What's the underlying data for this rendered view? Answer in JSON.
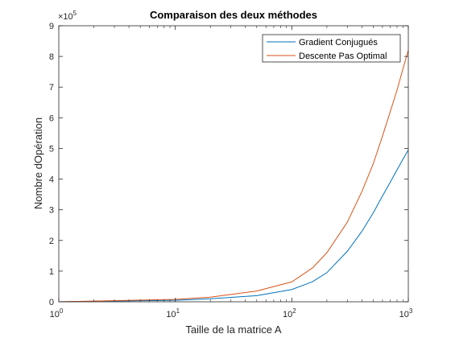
{
  "chart_data": {
    "type": "line",
    "title": "Comparaison des deux méthodes",
    "xlabel": "Taille de la matrice A",
    "ylabel": "Nombre dOpération",
    "xscale": "log",
    "xlim": [
      1,
      1000
    ],
    "ylim": [
      0,
      900000
    ],
    "y_multiplier_label": "×10",
    "y_multiplier_exponent": "5",
    "x_tick_base": "10",
    "x_ticks": [
      {
        "value": 1,
        "exponent": "0"
      },
      {
        "value": 10,
        "exponent": "1"
      },
      {
        "value": 100,
        "exponent": "2"
      },
      {
        "value": 1000,
        "exponent": "3"
      }
    ],
    "y_ticks": [
      0,
      100000,
      200000,
      300000,
      400000,
      500000,
      600000,
      700000,
      800000,
      900000
    ],
    "y_tick_labels": [
      "0",
      "1",
      "2",
      "3",
      "4",
      "5",
      "6",
      "7",
      "8",
      "9"
    ],
    "legend_position": "top-right",
    "grid": false,
    "series": [
      {
        "name": "Gradient Conjugués",
        "color": "#0072BD",
        "x": [
          1,
          10,
          20,
          50,
          100,
          150,
          200,
          300,
          400,
          500,
          600,
          700,
          800,
          900,
          1000
        ],
        "y": [
          0,
          5000,
          10000,
          20000,
          40000,
          65000,
          95000,
          165000,
          230000,
          290000,
          345000,
          390000,
          430000,
          465000,
          495000
        ]
      },
      {
        "name": "Descente Pas Optimal",
        "color": "#D95319",
        "x": [
          1,
          10,
          20,
          50,
          100,
          150,
          200,
          300,
          400,
          500,
          600,
          700,
          800,
          900,
          1000
        ],
        "y": [
          0,
          8000,
          15000,
          35000,
          65000,
          110000,
          160000,
          260000,
          360000,
          450000,
          540000,
          620000,
          690000,
          760000,
          820000
        ]
      }
    ]
  }
}
